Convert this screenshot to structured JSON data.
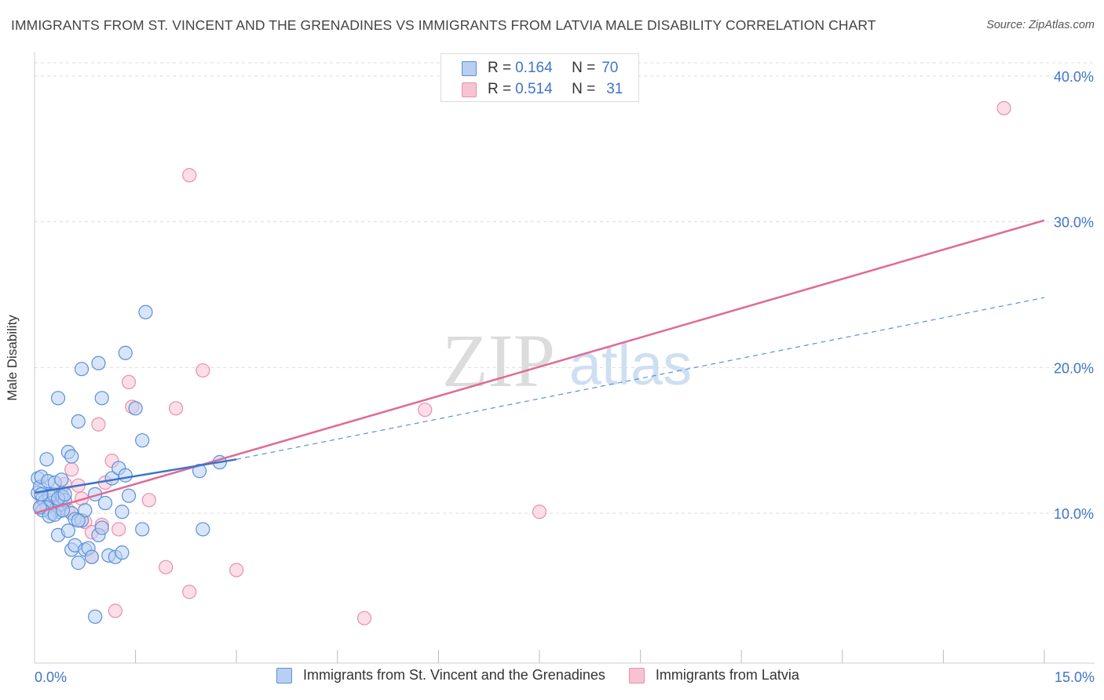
{
  "title": "IMMIGRANTS FROM ST. VINCENT AND THE GRENADINES VS IMMIGRANTS FROM LATVIA MALE DISABILITY CORRELATION CHART",
  "source": "Source: ZipAtlas.com",
  "watermark": {
    "zip": "ZIP",
    "atlas": "atlas"
  },
  "legend_top": [
    {
      "r_label": "R =",
      "r_value": "0.164",
      "n_label": "N =",
      "n_value": "70"
    },
    {
      "r_label": "R =",
      "r_value": "0.514",
      "n_label": "N =",
      "n_value": "31"
    }
  ],
  "x_tick_labels": {
    "left": "0.0%",
    "right": "15.0%"
  },
  "colors": {
    "blue_fill": "#b8cff2",
    "blue_stroke": "#5b8fd9",
    "blue_line": "#3a74c9",
    "pink_fill": "#f7c3d3",
    "pink_stroke": "#e890ad",
    "pink_line": "#e06a94",
    "axis_text": "#3f74c9",
    "grid": "#dddddd"
  },
  "chart_data": {
    "type": "scatter",
    "title": "IMMIGRANTS FROM ST. VINCENT AND THE GRENADINES VS IMMIGRANTS FROM LATVIA MALE DISABILITY CORRELATION CHART",
    "xlabel": "",
    "ylabel": "Male Disability",
    "xlim": [
      0,
      15
    ],
    "ylim": [
      0,
      40
    ],
    "y_ticks": [
      10,
      20,
      30,
      40
    ],
    "y_tick_labels": [
      "10.0%",
      "20.0%",
      "30.0%",
      "40.0%"
    ],
    "x_minor_ticks": [
      1.5,
      3.0,
      4.5,
      6.0,
      7.5,
      9.0,
      10.5,
      12.0,
      13.5,
      15.0
    ],
    "series": [
      {
        "name": "Immigrants from St. Vincent and the Grenadines",
        "color": "blue",
        "r": 0.164,
        "n": 70,
        "trend_solid": [
          [
            0.0,
            11.4
          ],
          [
            3.0,
            13.7
          ]
        ],
        "trend_dashed": [
          [
            3.0,
            13.7
          ],
          [
            15.0,
            24.8
          ]
        ],
        "points": [
          [
            0.05,
            12.4
          ],
          [
            0.05,
            11.4
          ],
          [
            0.08,
            11.8
          ],
          [
            0.1,
            12.5
          ],
          [
            0.12,
            11.0
          ],
          [
            0.15,
            10.8
          ],
          [
            0.18,
            13.7
          ],
          [
            0.2,
            12.2
          ],
          [
            0.22,
            11.2
          ],
          [
            0.25,
            10.7
          ],
          [
            0.28,
            11.3
          ],
          [
            0.3,
            12.1
          ],
          [
            0.32,
            10.3
          ],
          [
            0.35,
            10.1
          ],
          [
            0.38,
            10.6
          ],
          [
            0.4,
            11.2
          ],
          [
            0.42,
            11.1
          ],
          [
            0.45,
            10.9
          ],
          [
            0.5,
            14.2
          ],
          [
            0.55,
            10.0
          ],
          [
            0.6,
            9.6
          ],
          [
            0.25,
            10.0
          ],
          [
            0.18,
            10.4
          ],
          [
            0.12,
            10.2
          ],
          [
            0.22,
            9.8
          ],
          [
            0.3,
            9.9
          ],
          [
            0.35,
            8.5
          ],
          [
            0.42,
            10.2
          ],
          [
            0.5,
            8.8
          ],
          [
            0.55,
            7.5
          ],
          [
            0.6,
            7.8
          ],
          [
            0.65,
            6.6
          ],
          [
            0.7,
            9.5
          ],
          [
            0.75,
            10.2
          ],
          [
            0.75,
            7.5
          ],
          [
            0.8,
            7.6
          ],
          [
            0.85,
            7.0
          ],
          [
            0.9,
            11.3
          ],
          [
            0.95,
            8.5
          ],
          [
            1.0,
            9.0
          ],
          [
            1.05,
            10.7
          ],
          [
            1.1,
            7.1
          ],
          [
            1.15,
            12.4
          ],
          [
            1.2,
            7.0
          ],
          [
            1.25,
            13.1
          ],
          [
            1.3,
            7.3
          ],
          [
            1.35,
            12.6
          ],
          [
            1.4,
            11.2
          ],
          [
            1.5,
            17.2
          ],
          [
            1.6,
            15.0
          ],
          [
            1.6,
            8.9
          ],
          [
            1.65,
            23.8
          ],
          [
            1.35,
            21.0
          ],
          [
            0.95,
            20.3
          ],
          [
            0.7,
            19.9
          ],
          [
            0.65,
            16.3
          ],
          [
            1.0,
            17.9
          ],
          [
            0.35,
            17.9
          ],
          [
            0.55,
            13.9
          ],
          [
            0.4,
            12.3
          ],
          [
            0.9,
            2.9
          ],
          [
            2.45,
            12.9
          ],
          [
            2.5,
            8.9
          ],
          [
            2.75,
            13.5
          ],
          [
            1.3,
            10.1
          ],
          [
            0.35,
            11.0
          ],
          [
            0.45,
            11.3
          ],
          [
            0.65,
            9.5
          ],
          [
            0.1,
            11.3
          ],
          [
            0.08,
            10.4
          ]
        ]
      },
      {
        "name": "Immigrants from Latvia",
        "color": "pink",
        "r": 0.514,
        "n": 31,
        "trend_solid": [
          [
            0.0,
            10.0
          ],
          [
            15.0,
            30.1
          ]
        ],
        "points": [
          [
            0.1,
            10.4
          ],
          [
            0.2,
            10.9
          ],
          [
            0.3,
            10.5
          ],
          [
            0.4,
            11.4
          ],
          [
            0.45,
            12.0
          ],
          [
            0.5,
            10.2
          ],
          [
            0.55,
            13.0
          ],
          [
            0.65,
            11.9
          ],
          [
            0.7,
            11.0
          ],
          [
            0.75,
            9.4
          ],
          [
            0.85,
            7.0
          ],
          [
            0.85,
            8.7
          ],
          [
            0.95,
            16.1
          ],
          [
            1.0,
            9.2
          ],
          [
            1.05,
            12.1
          ],
          [
            1.15,
            13.6
          ],
          [
            1.2,
            3.3
          ],
          [
            1.25,
            8.9
          ],
          [
            1.4,
            19.0
          ],
          [
            1.45,
            17.3
          ],
          [
            1.7,
            10.9
          ],
          [
            1.95,
            6.3
          ],
          [
            2.1,
            17.2
          ],
          [
            2.3,
            4.6
          ],
          [
            2.3,
            33.2
          ],
          [
            2.5,
            19.8
          ],
          [
            3.0,
            6.1
          ],
          [
            4.9,
            2.8
          ],
          [
            5.8,
            17.1
          ],
          [
            7.5,
            10.1
          ],
          [
            14.4,
            37.8
          ]
        ]
      }
    ],
    "legend": [
      "Immigrants from St. Vincent and the Grenadines",
      "Immigrants from Latvia"
    ]
  }
}
